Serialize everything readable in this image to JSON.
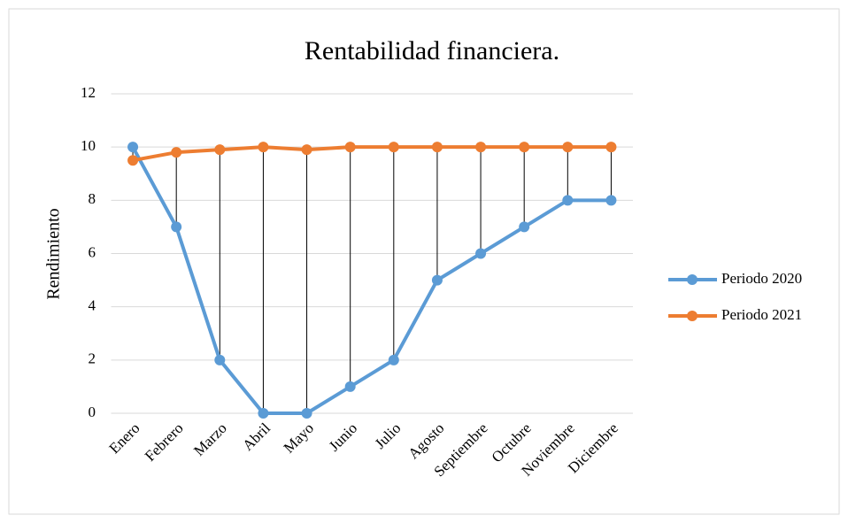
{
  "chart_data": {
    "type": "line",
    "title": "Rentabilidad financiera.",
    "y_label": "Rendimiento",
    "categories": [
      "Enero",
      "Febrero",
      "Marzo",
      "Abril",
      "Mayo",
      "Junio",
      "Julio",
      "Agosto",
      "Septiembre",
      "Octubre",
      "Noviembre",
      "Diciembre"
    ],
    "series": [
      {
        "name": "Periodo 2020",
        "color": "#5b9bd5",
        "values": [
          10,
          7,
          2,
          0,
          0,
          1,
          2,
          5,
          6,
          7,
          8,
          8
        ]
      },
      {
        "name": "Periodo 2021",
        "color": "#ed7d31",
        "values": [
          9.5,
          9.8,
          9.9,
          10,
          9.9,
          10,
          10,
          10,
          10,
          10,
          10,
          10
        ]
      }
    ],
    "ylim": [
      0,
      12
    ],
    "yticks": [
      0,
      2,
      4,
      6,
      8,
      10,
      12
    ],
    "grid": true,
    "drop_lines": true,
    "legend": "right"
  }
}
